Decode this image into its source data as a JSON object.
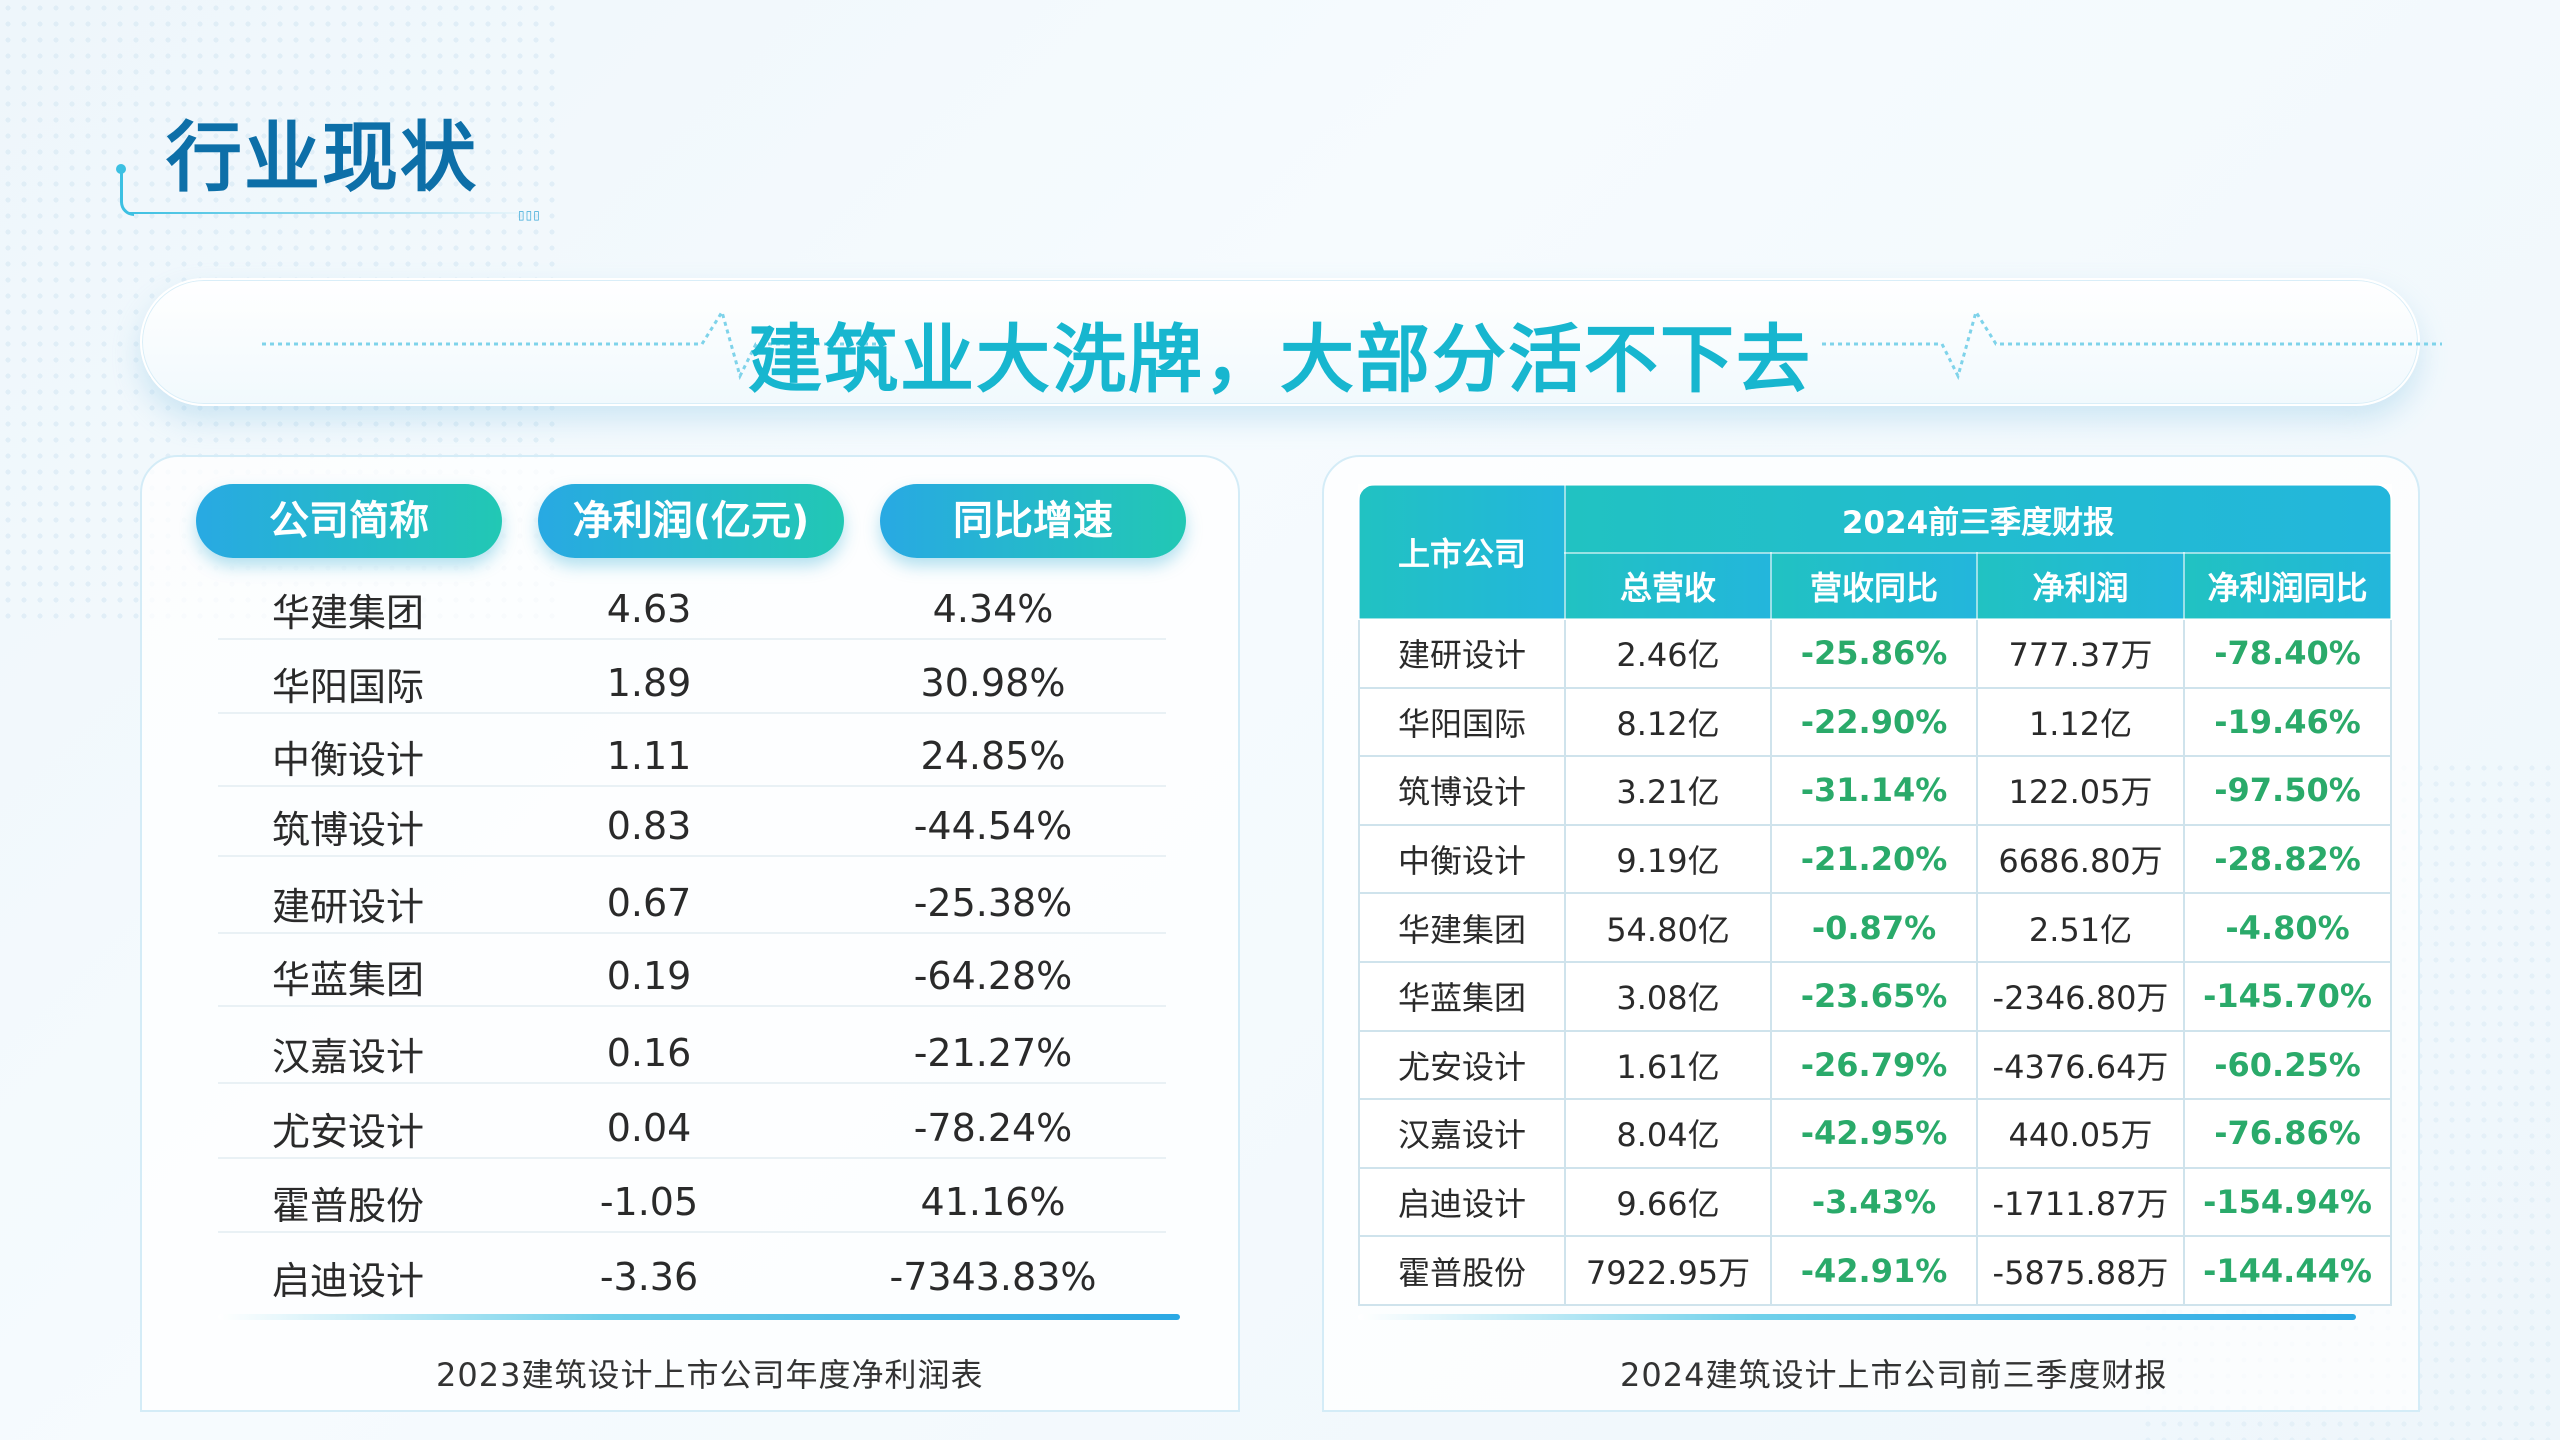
{
  "header": {
    "title": "行业现状",
    "mark": "▯▯▯"
  },
  "banner": {
    "text": "建筑业大洗牌，大部分活不下去"
  },
  "left_table": {
    "headers": [
      "公司简称",
      "净利润(亿元)",
      "同比增速"
    ],
    "rows": [
      [
        "华建集团",
        "4.63",
        "4.34%"
      ],
      [
        "华阳国际",
        "1.89",
        "30.98%"
      ],
      [
        "中衡设计",
        "1.11",
        "24.85%"
      ],
      [
        "筑博设计",
        "0.83",
        "-44.54%"
      ],
      [
        "建研设计",
        "0.67",
        "-25.38%"
      ],
      [
        "华蓝集团",
        "0.19",
        "-64.28%"
      ],
      [
        "汉嘉设计",
        "0.16",
        "-21.27%"
      ],
      [
        "尤安设计",
        "0.04",
        "-78.24%"
      ],
      [
        "霍普股份",
        "-1.05",
        "41.16%"
      ],
      [
        "启迪设计",
        "-3.36",
        "-7343.83%"
      ]
    ],
    "caption": "2023建筑设计上市公司年度净利润表"
  },
  "right_table": {
    "company_header": "上市公司",
    "group_header": "2024前三季度财报",
    "sub_headers": [
      "总营收",
      "营收同比",
      "净利润",
      "净利润同比"
    ],
    "rows": [
      [
        "建研设计",
        "2.46亿",
        "-25.86%",
        "777.37万",
        "-78.40%"
      ],
      [
        "华阳国际",
        "8.12亿",
        "-22.90%",
        "1.12亿",
        "-19.46%"
      ],
      [
        "筑博设计",
        "3.21亿",
        "-31.14%",
        "122.05万",
        "-97.50%"
      ],
      [
        "中衡设计",
        "9.19亿",
        "-21.20%",
        "6686.80万",
        "-28.82%"
      ],
      [
        "华建集团",
        "54.80亿",
        "-0.87%",
        "2.51亿",
        "-4.80%"
      ],
      [
        "华蓝集团",
        "3.08亿",
        "-23.65%",
        "-2346.80万",
        "-145.70%"
      ],
      [
        "尤安设计",
        "1.61亿",
        "-26.79%",
        "-4376.64万",
        "-60.25%"
      ],
      [
        "汉嘉设计",
        "8.04亿",
        "-42.95%",
        "440.05万",
        "-76.86%"
      ],
      [
        "启迪设计",
        "9.66亿",
        "-3.43%",
        "-1711.87万",
        "-154.94%"
      ],
      [
        "霍普股份",
        "7922.95万",
        "-42.91%",
        "-5875.88万",
        "-144.44%"
      ]
    ],
    "caption": "2024建筑设计上市公司前三季度财报"
  },
  "colors": {
    "accent": "#17b6cf",
    "title": "#0d6fa8",
    "positive_green": "#2aaa6a"
  }
}
